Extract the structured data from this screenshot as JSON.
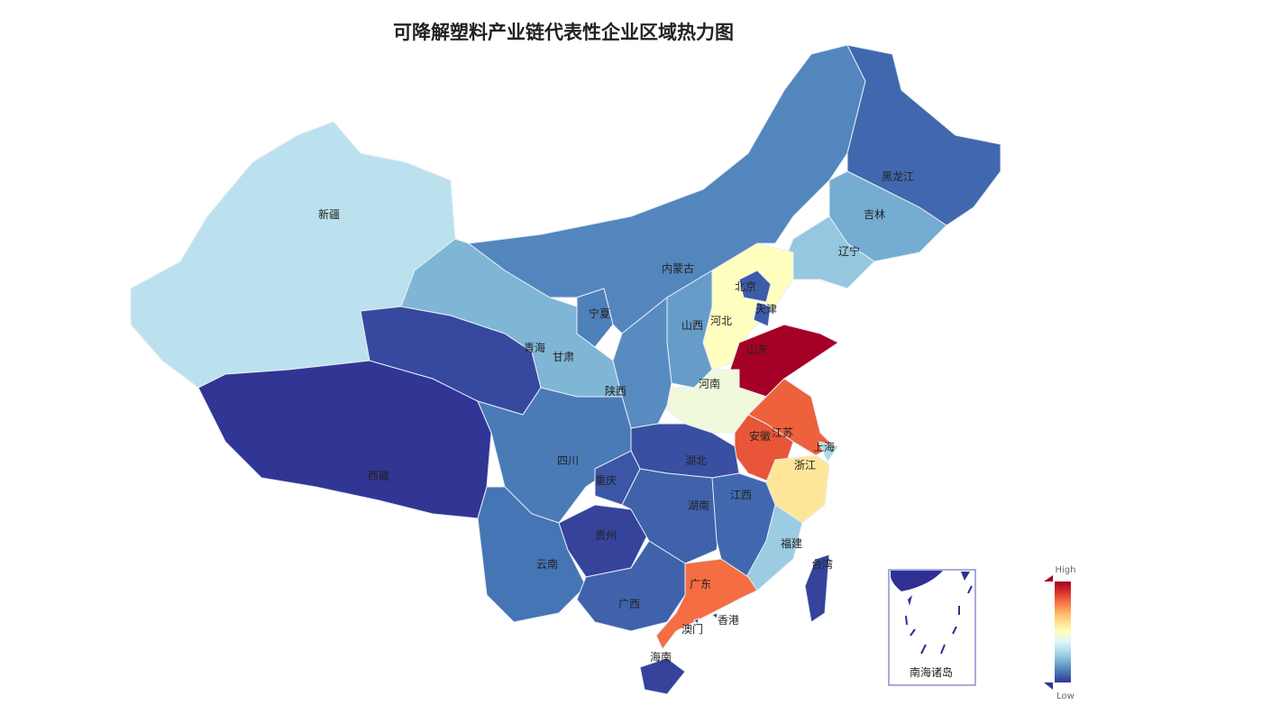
{
  "title": "可降解塑料产业链代表性企业区域热力图",
  "legend": {
    "high": "High",
    "low": "Low",
    "colors": [
      "#313695",
      "#4575b4",
      "#74add1",
      "#abd9e9",
      "#e0f3f8",
      "#ffffbf",
      "#fee090",
      "#fdae61",
      "#f46d43",
      "#d73027",
      "#a50026"
    ]
  },
  "inset": {
    "label": "南海诸岛"
  },
  "provinces": [
    {
      "name": "新疆",
      "level": 0.33
    },
    {
      "name": "西藏",
      "level": 0.0
    },
    {
      "name": "青海",
      "level": 0.03
    },
    {
      "name": "甘肃",
      "level": 0.22
    },
    {
      "name": "内蒙古",
      "level": 0.13
    },
    {
      "name": "黑龙江",
      "level": 0.08
    },
    {
      "name": "吉林",
      "level": 0.2
    },
    {
      "name": "辽宁",
      "level": 0.26
    },
    {
      "name": "河北",
      "level": 0.5
    },
    {
      "name": "北京",
      "level": 0.06
    },
    {
      "name": "天津",
      "level": 0.06
    },
    {
      "name": "山西",
      "level": 0.17
    },
    {
      "name": "山东",
      "level": 1.0
    },
    {
      "name": "河南",
      "level": 0.45
    },
    {
      "name": "陕西",
      "level": 0.14
    },
    {
      "name": "宁夏",
      "level": 0.12
    },
    {
      "name": "江苏",
      "level": 0.82
    },
    {
      "name": "安徽",
      "level": 0.84
    },
    {
      "name": "上海",
      "level": 0.3
    },
    {
      "name": "浙江",
      "level": 0.58
    },
    {
      "name": "湖北",
      "level": 0.04
    },
    {
      "name": "四川",
      "level": 0.11
    },
    {
      "name": "重庆",
      "level": 0.05
    },
    {
      "name": "云南",
      "level": 0.1
    },
    {
      "name": "贵州",
      "level": 0.02
    },
    {
      "name": "湖南",
      "level": 0.07
    },
    {
      "name": "江西",
      "level": 0.08
    },
    {
      "name": "福建",
      "level": 0.27
    },
    {
      "name": "广东",
      "level": 0.8
    },
    {
      "name": "广西",
      "level": 0.07
    },
    {
      "name": "海南",
      "level": 0.02
    },
    {
      "name": "台湾",
      "level": 0.02
    },
    {
      "name": "香港",
      "level": 0.02
    },
    {
      "name": "澳门",
      "level": 0.02
    }
  ]
}
